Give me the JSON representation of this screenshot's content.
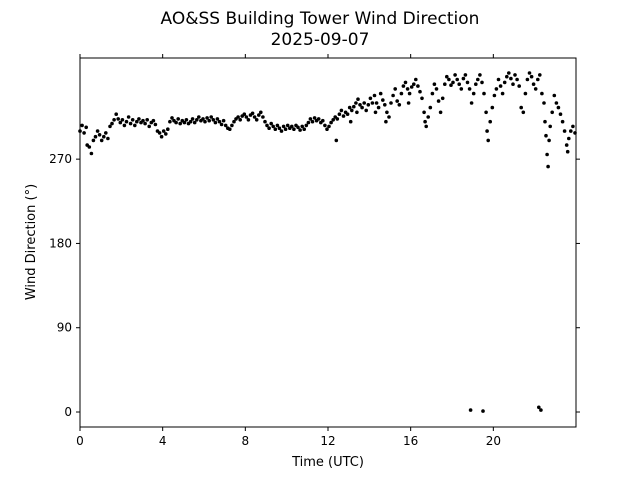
{
  "chart_data": {
    "type": "scatter",
    "title": "AO&SS Building Tower Wind Direction",
    "subtitle": "2025-09-07",
    "xlabel": "Time (UTC)",
    "ylabel": "Wind Direction (°)",
    "xlim": [
      0,
      24
    ],
    "ylim": [
      -16,
      378
    ],
    "xticks": [
      0,
      4,
      8,
      12,
      16,
      20
    ],
    "yticks": [
      0,
      90,
      180,
      270
    ],
    "grid": false,
    "marker_color": "#000000",
    "points": [
      [
        0.0,
        300
      ],
      [
        0.1,
        306
      ],
      [
        0.2,
        298
      ],
      [
        0.3,
        304
      ],
      [
        0.35,
        285
      ],
      [
        0.45,
        283
      ],
      [
        0.55,
        276
      ],
      [
        0.65,
        290
      ],
      [
        0.75,
        294
      ],
      [
        0.85,
        300
      ],
      [
        0.95,
        296
      ],
      [
        1.05,
        290
      ],
      [
        1.15,
        294
      ],
      [
        1.25,
        298
      ],
      [
        1.35,
        292
      ],
      [
        1.45,
        305
      ],
      [
        1.55,
        308
      ],
      [
        1.65,
        312
      ],
      [
        1.75,
        318
      ],
      [
        1.85,
        313
      ],
      [
        1.95,
        309
      ],
      [
        2.05,
        312
      ],
      [
        2.15,
        306
      ],
      [
        2.25,
        310
      ],
      [
        2.35,
        315
      ],
      [
        2.45,
        308
      ],
      [
        2.55,
        312
      ],
      [
        2.65,
        306
      ],
      [
        2.75,
        310
      ],
      [
        2.85,
        313
      ],
      [
        2.95,
        309
      ],
      [
        3.05,
        311
      ],
      [
        3.15,
        308
      ],
      [
        3.25,
        312
      ],
      [
        3.35,
        305
      ],
      [
        3.45,
        309
      ],
      [
        3.55,
        311
      ],
      [
        3.65,
        307
      ],
      [
        3.75,
        300
      ],
      [
        3.85,
        298
      ],
      [
        3.95,
        294
      ],
      [
        4.05,
        300
      ],
      [
        4.15,
        297
      ],
      [
        4.25,
        302
      ],
      [
        4.35,
        310
      ],
      [
        4.45,
        314
      ],
      [
        4.55,
        311
      ],
      [
        4.65,
        309
      ],
      [
        4.75,
        313
      ],
      [
        4.85,
        308
      ],
      [
        4.95,
        311
      ],
      [
        5.05,
        309
      ],
      [
        5.15,
        312
      ],
      [
        5.25,
        308
      ],
      [
        5.35,
        310
      ],
      [
        5.45,
        313
      ],
      [
        5.55,
        309
      ],
      [
        5.65,
        312
      ],
      [
        5.75,
        315
      ],
      [
        5.85,
        311
      ],
      [
        5.95,
        313
      ],
      [
        6.05,
        310
      ],
      [
        6.15,
        314
      ],
      [
        6.25,
        311
      ],
      [
        6.35,
        315
      ],
      [
        6.45,
        312
      ],
      [
        6.55,
        309
      ],
      [
        6.65,
        313
      ],
      [
        6.75,
        310
      ],
      [
        6.85,
        307
      ],
      [
        6.95,
        311
      ],
      [
        7.05,
        306
      ],
      [
        7.15,
        303
      ],
      [
        7.25,
        302
      ],
      [
        7.35,
        306
      ],
      [
        7.45,
        310
      ],
      [
        7.55,
        313
      ],
      [
        7.65,
        315
      ],
      [
        7.75,
        312
      ],
      [
        7.85,
        316
      ],
      [
        7.95,
        318
      ],
      [
        8.05,
        315
      ],
      [
        8.15,
        312
      ],
      [
        8.25,
        317
      ],
      [
        8.35,
        319
      ],
      [
        8.45,
        315
      ],
      [
        8.55,
        312
      ],
      [
        8.65,
        317
      ],
      [
        8.75,
        320
      ],
      [
        8.85,
        315
      ],
      [
        8.95,
        310
      ],
      [
        9.05,
        306
      ],
      [
        9.15,
        303
      ],
      [
        9.25,
        308
      ],
      [
        9.35,
        305
      ],
      [
        9.45,
        302
      ],
      [
        9.55,
        306
      ],
      [
        9.65,
        303
      ],
      [
        9.75,
        300
      ],
      [
        9.85,
        305
      ],
      [
        9.95,
        302
      ],
      [
        10.05,
        306
      ],
      [
        10.15,
        303
      ],
      [
        10.25,
        305
      ],
      [
        10.35,
        302
      ],
      [
        10.45,
        306
      ],
      [
        10.55,
        304
      ],
      [
        10.65,
        301
      ],
      [
        10.75,
        305
      ],
      [
        10.85,
        302
      ],
      [
        10.95,
        306
      ],
      [
        11.05,
        309
      ],
      [
        11.15,
        313
      ],
      [
        11.25,
        310
      ],
      [
        11.35,
        314
      ],
      [
        11.45,
        311
      ],
      [
        11.55,
        313
      ],
      [
        11.65,
        309
      ],
      [
        11.75,
        311
      ],
      [
        11.85,
        306
      ],
      [
        11.95,
        302
      ],
      [
        12.05,
        305
      ],
      [
        12.15,
        309
      ],
      [
        12.25,
        312
      ],
      [
        12.35,
        315
      ],
      [
        12.4,
        290
      ],
      [
        12.45,
        313
      ],
      [
        12.55,
        318
      ],
      [
        12.65,
        322
      ],
      [
        12.75,
        316
      ],
      [
        12.85,
        320
      ],
      [
        12.95,
        318
      ],
      [
        13.05,
        325
      ],
      [
        13.1,
        310
      ],
      [
        13.15,
        322
      ],
      [
        13.25,
        326
      ],
      [
        13.35,
        330
      ],
      [
        13.4,
        320
      ],
      [
        13.45,
        334
      ],
      [
        13.55,
        328
      ],
      [
        13.65,
        325
      ],
      [
        13.75,
        330
      ],
      [
        13.85,
        322
      ],
      [
        13.95,
        328
      ],
      [
        14.05,
        335
      ],
      [
        14.15,
        330
      ],
      [
        14.25,
        338
      ],
      [
        14.3,
        320
      ],
      [
        14.35,
        330
      ],
      [
        14.45,
        325
      ],
      [
        14.55,
        340
      ],
      [
        14.65,
        333
      ],
      [
        14.75,
        328
      ],
      [
        14.8,
        310
      ],
      [
        14.85,
        320
      ],
      [
        14.95,
        315
      ],
      [
        15.05,
        330
      ],
      [
        15.15,
        338
      ],
      [
        15.25,
        345
      ],
      [
        15.35,
        332
      ],
      [
        15.45,
        328
      ],
      [
        15.55,
        340
      ],
      [
        15.65,
        348
      ],
      [
        15.75,
        352
      ],
      [
        15.85,
        345
      ],
      [
        15.9,
        330
      ],
      [
        15.95,
        340
      ],
      [
        16.05,
        347
      ],
      [
        16.15,
        350
      ],
      [
        16.25,
        355
      ],
      [
        16.35,
        348
      ],
      [
        16.45,
        342
      ],
      [
        16.55,
        335
      ],
      [
        16.65,
        320
      ],
      [
        16.7,
        310
      ],
      [
        16.75,
        305
      ],
      [
        16.85,
        315
      ],
      [
        16.95,
        325
      ],
      [
        17.05,
        340
      ],
      [
        17.15,
        350
      ],
      [
        17.25,
        345
      ],
      [
        17.35,
        332
      ],
      [
        17.45,
        320
      ],
      [
        17.55,
        335
      ],
      [
        17.65,
        350
      ],
      [
        17.75,
        358
      ],
      [
        17.85,
        355
      ],
      [
        17.95,
        349
      ],
      [
        18.05,
        352
      ],
      [
        18.15,
        360
      ],
      [
        18.25,
        355
      ],
      [
        18.35,
        350
      ],
      [
        18.45,
        345
      ],
      [
        18.55,
        356
      ],
      [
        18.65,
        360
      ],
      [
        18.75,
        352
      ],
      [
        18.85,
        345
      ],
      [
        18.9,
        2
      ],
      [
        18.95,
        330
      ],
      [
        19.05,
        340
      ],
      [
        19.15,
        350
      ],
      [
        19.25,
        355
      ],
      [
        19.35,
        360
      ],
      [
        19.45,
        352
      ],
      [
        19.5,
        1
      ],
      [
        19.55,
        340
      ],
      [
        19.65,
        320
      ],
      [
        19.7,
        300
      ],
      [
        19.75,
        290
      ],
      [
        19.85,
        310
      ],
      [
        19.95,
        325
      ],
      [
        20.05,
        338
      ],
      [
        20.15,
        345
      ],
      [
        20.25,
        355
      ],
      [
        20.35,
        348
      ],
      [
        20.45,
        340
      ],
      [
        20.55,
        352
      ],
      [
        20.65,
        358
      ],
      [
        20.75,
        362
      ],
      [
        20.85,
        356
      ],
      [
        20.95,
        350
      ],
      [
        21.05,
        360
      ],
      [
        21.15,
        355
      ],
      [
        21.25,
        348
      ],
      [
        21.35,
        325
      ],
      [
        21.45,
        320
      ],
      [
        21.55,
        340
      ],
      [
        21.65,
        355
      ],
      [
        21.75,
        362
      ],
      [
        21.85,
        358
      ],
      [
        21.95,
        350
      ],
      [
        22.05,
        345
      ],
      [
        22.15,
        355
      ],
      [
        22.2,
        5
      ],
      [
        22.25,
        360
      ],
      [
        22.3,
        2
      ],
      [
        22.35,
        340
      ],
      [
        22.45,
        330
      ],
      [
        22.5,
        310
      ],
      [
        22.55,
        295
      ],
      [
        22.6,
        275
      ],
      [
        22.65,
        262
      ],
      [
        22.7,
        290
      ],
      [
        22.75,
        305
      ],
      [
        22.85,
        320
      ],
      [
        22.95,
        338
      ],
      [
        23.05,
        330
      ],
      [
        23.15,
        325
      ],
      [
        23.25,
        318
      ],
      [
        23.35,
        310
      ],
      [
        23.45,
        300
      ],
      [
        23.55,
        285
      ],
      [
        23.6,
        278
      ],
      [
        23.65,
        292
      ],
      [
        23.75,
        300
      ],
      [
        23.85,
        305
      ],
      [
        23.95,
        298
      ]
    ]
  }
}
